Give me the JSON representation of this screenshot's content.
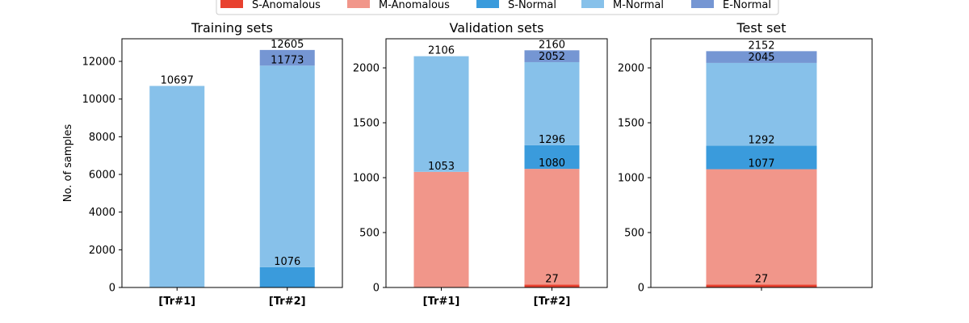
{
  "chart_data": {
    "type": "bar",
    "stacked": true,
    "legend": {
      "placement": "top-center",
      "entries": [
        {
          "name": "S-Anomalous",
          "color": "#E8412F"
        },
        {
          "name": "M-Anomalous",
          "color": "#F1968A"
        },
        {
          "name": "S-Normal",
          "color": "#3A9BDC"
        },
        {
          "name": "M-Normal",
          "color": "#87C1EA"
        },
        {
          "name": "E-Normal",
          "color": "#7596D3"
        }
      ]
    },
    "panels": [
      {
        "title": "Training sets",
        "ylabel": "No. of samples",
        "ylim": [
          0,
          13200
        ],
        "yticks": [
          0,
          2000,
          4000,
          6000,
          8000,
          10000,
          12000
        ],
        "xlim": [
          -0.5,
          1.5
        ],
        "categories": [
          "[Tr#1]",
          "[Tr#2]"
        ],
        "bars": [
          {
            "segments": [
              {
                "series": "M-Normal",
                "base": 0,
                "top": 10697
              }
            ],
            "labels": [
              {
                "value": "10697",
                "y": 10697
              }
            ]
          },
          {
            "segments": [
              {
                "series": "S-Normal",
                "base": 0,
                "top": 1076
              },
              {
                "series": "M-Normal",
                "base": 1076,
                "top": 11773
              },
              {
                "series": "E-Normal",
                "base": 11773,
                "top": 12605
              }
            ],
            "labels": [
              {
                "value": "1076",
                "y": 1076
              },
              {
                "value": "11773",
                "y": 11773
              },
              {
                "value": "12605",
                "y": 12605
              }
            ]
          }
        ]
      },
      {
        "title": "Validation sets",
        "ylabel": "",
        "ylim": [
          0,
          2265
        ],
        "yticks": [
          0,
          500,
          1000,
          1500,
          2000
        ],
        "xlim": [
          -0.5,
          1.5
        ],
        "categories": [
          "[Tr#1]",
          "[Tr#2]"
        ],
        "bars": [
          {
            "segments": [
              {
                "series": "M-Anomalous",
                "base": 0,
                "top": 1053
              },
              {
                "series": "M-Normal",
                "base": 1053,
                "top": 2106
              }
            ],
            "labels": [
              {
                "value": "1053",
                "y": 1053
              },
              {
                "value": "2106",
                "y": 2106
              }
            ]
          },
          {
            "segments": [
              {
                "series": "S-Anomalous",
                "base": 0,
                "top": 27
              },
              {
                "series": "M-Anomalous",
                "base": 27,
                "top": 1080
              },
              {
                "series": "S-Normal",
                "base": 1080,
                "top": 1296
              },
              {
                "series": "M-Normal",
                "base": 1296,
                "top": 2052
              },
              {
                "series": "E-Normal",
                "base": 2052,
                "top": 2160
              }
            ],
            "labels": [
              {
                "value": "27",
                "y": 27
              },
              {
                "value": "1080",
                "y": 1080
              },
              {
                "value": "1296",
                "y": 1296
              },
              {
                "value": "2052",
                "y": 2052
              },
              {
                "value": "2160",
                "y": 2160
              }
            ]
          }
        ]
      },
      {
        "title": "Test set",
        "ylabel": "",
        "ylim": [
          0,
          2265
        ],
        "yticks": [
          0,
          500,
          1000,
          1500,
          2000
        ],
        "xlim": [
          -0.5,
          0.5
        ],
        "categories": [
          ""
        ],
        "bars": [
          {
            "segments": [
              {
                "series": "S-Anomalous",
                "base": 0,
                "top": 27
              },
              {
                "series": "M-Anomalous",
                "base": 27,
                "top": 1077
              },
              {
                "series": "S-Normal",
                "base": 1077,
                "top": 1292
              },
              {
                "series": "M-Normal",
                "base": 1292,
                "top": 2045
              },
              {
                "series": "E-Normal",
                "base": 2045,
                "top": 2152
              }
            ],
            "labels": [
              {
                "value": "27",
                "y": 27
              },
              {
                "value": "1077",
                "y": 1077
              },
              {
                "value": "1292",
                "y": 1292
              },
              {
                "value": "2045",
                "y": 2045
              },
              {
                "value": "2152",
                "y": 2152
              }
            ]
          }
        ]
      }
    ]
  }
}
